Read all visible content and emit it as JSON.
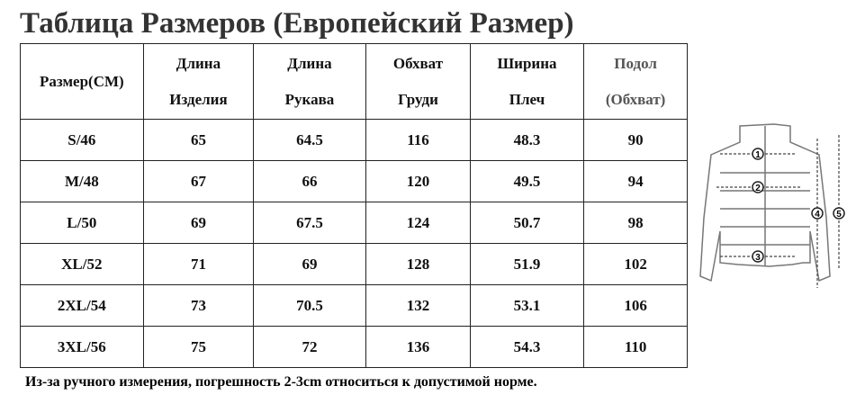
{
  "header": {
    "title": "Таблица Размеров (Европейский Размер)"
  },
  "table": {
    "columns": [
      [
        "Размер(CM)"
      ],
      [
        "Длина",
        "Изделия"
      ],
      [
        "Длина",
        "Рукава"
      ],
      [
        "Обхват",
        "Груди"
      ],
      [
        "Ширина",
        "Плеч"
      ],
      [
        "Подол",
        "(Обхват)"
      ]
    ],
    "rows": [
      [
        "S/46",
        65,
        64.5,
        116,
        48.3,
        90
      ],
      [
        "M/48",
        67,
        66,
        120,
        49.5,
        94
      ],
      [
        "L/50",
        69,
        67.5,
        124,
        50.7,
        98
      ],
      [
        "XL/52",
        71,
        69,
        128,
        51.9,
        102
      ],
      [
        "2XL/54",
        73,
        70.5,
        132,
        53.1,
        106
      ],
      [
        "3XL/56",
        75,
        72,
        136,
        54.3,
        110
      ]
    ]
  },
  "diagram": {
    "markers": [
      "1",
      "2",
      "3",
      "4",
      "5"
    ]
  },
  "footer": {
    "note": "Из-за ручного измерения, погрешность 2-3cm относиться к допустимой норме."
  }
}
